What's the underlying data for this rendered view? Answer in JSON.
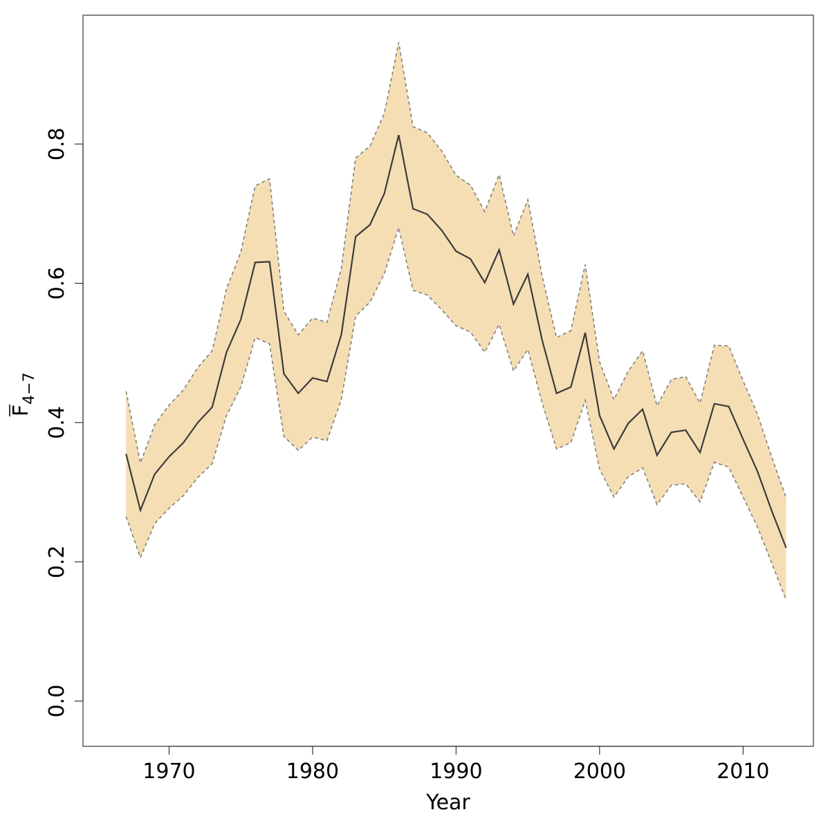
{
  "chart_data": {
    "type": "area",
    "xlabel": "Year",
    "ylabel": {
      "main": "F",
      "subscript": "4−7",
      "overbar": true
    },
    "xlim": [
      1964,
      2014.9
    ],
    "ylim": [
      -0.065,
      0.985
    ],
    "x_ticks": [
      1970,
      1980,
      1990,
      2000,
      2010
    ],
    "y_ticks": [
      0.0,
      0.2,
      0.4,
      0.6,
      0.8
    ],
    "x_tick_labels": [
      "1970",
      "1980",
      "1990",
      "2000",
      "2010"
    ],
    "y_tick_labels": [
      "0.0",
      "0.2",
      "0.4",
      "0.6",
      "0.8"
    ],
    "grid": false,
    "legend": "none",
    "colors": {
      "band": "#f5deb3",
      "bound_line": "#7f7f7f",
      "estimate_line": "#3a3a3a",
      "axis": "#000000"
    },
    "x": [
      1967,
      1968,
      1969,
      1970,
      1971,
      1972,
      1973,
      1974,
      1975,
      1976,
      1977,
      1978,
      1979,
      1980,
      1981,
      1982,
      1983,
      1984,
      1985,
      1986,
      1987,
      1988,
      1989,
      1990,
      1991,
      1992,
      1993,
      1994,
      1995,
      1996,
      1997,
      1998,
      1999,
      2000,
      2001,
      2002,
      2003,
      2004,
      2005,
      2006,
      2007,
      2008,
      2009,
      2010,
      2011,
      2012,
      2013
    ],
    "series": [
      {
        "role": "estimate",
        "values": [
          0.355,
          0.274,
          0.326,
          0.351,
          0.371,
          0.4,
          0.422,
          0.501,
          0.548,
          0.63,
          0.631,
          0.47,
          0.442,
          0.464,
          0.459,
          0.526,
          0.667,
          0.684,
          0.729,
          0.813,
          0.707,
          0.699,
          0.676,
          0.646,
          0.635,
          0.601,
          0.648,
          0.57,
          0.613,
          0.518,
          0.442,
          0.451,
          0.529,
          0.41,
          0.362,
          0.399,
          0.419,
          0.353,
          0.386,
          0.389,
          0.357,
          0.427,
          0.423,
          0.376,
          0.33,
          0.273,
          0.22
        ]
      },
      {
        "role": "upper",
        "values": [
          0.445,
          0.342,
          0.397,
          0.425,
          0.447,
          0.479,
          0.503,
          0.592,
          0.645,
          0.74,
          0.75,
          0.56,
          0.526,
          0.55,
          0.544,
          0.621,
          0.78,
          0.797,
          0.844,
          0.946,
          0.825,
          0.816,
          0.79,
          0.755,
          0.741,
          0.703,
          0.756,
          0.668,
          0.72,
          0.61,
          0.522,
          0.532,
          0.627,
          0.487,
          0.433,
          0.474,
          0.503,
          0.424,
          0.462,
          0.466,
          0.428,
          0.511,
          0.51,
          0.46,
          0.412,
          0.35,
          0.292
        ]
      },
      {
        "role": "lower",
        "values": [
          0.265,
          0.206,
          0.255,
          0.277,
          0.295,
          0.321,
          0.341,
          0.41,
          0.451,
          0.522,
          0.513,
          0.38,
          0.36,
          0.379,
          0.374,
          0.433,
          0.553,
          0.573,
          0.614,
          0.68,
          0.59,
          0.583,
          0.562,
          0.539,
          0.53,
          0.501,
          0.541,
          0.474,
          0.505,
          0.428,
          0.362,
          0.371,
          0.432,
          0.333,
          0.293,
          0.322,
          0.335,
          0.282,
          0.31,
          0.312,
          0.286,
          0.343,
          0.336,
          0.293,
          0.25,
          0.198,
          0.145
        ]
      }
    ]
  }
}
